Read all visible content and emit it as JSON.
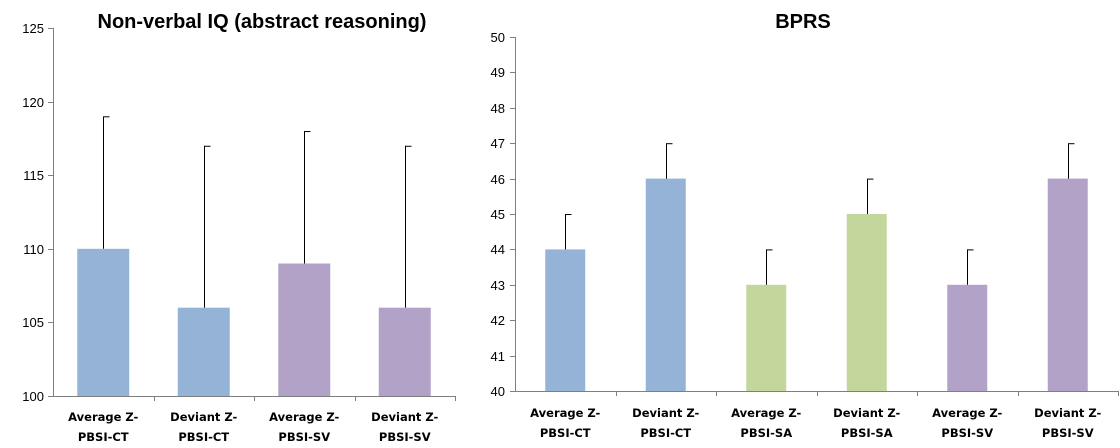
{
  "chart_data": [
    {
      "type": "bar",
      "title": "Non-verbal IQ (abstract reasoning)",
      "xlabel": "",
      "ylabel": "",
      "ylim": [
        100,
        125
      ],
      "yticks": [
        100,
        105,
        110,
        115,
        120,
        125
      ],
      "categories": [
        [
          "Average Z-",
          "PBSI-CT"
        ],
        [
          "Deviant Z-",
          "PBSI-CT"
        ],
        [
          "Average Z-",
          "PBSI-SV"
        ],
        [
          "Deviant Z-",
          "PBSI-SV"
        ]
      ],
      "values": [
        110,
        106,
        109,
        106
      ],
      "error_upper": [
        9,
        11,
        9,
        11
      ],
      "colors": [
        "#95b3d7",
        "#95b3d7",
        "#b3a2c7",
        "#b3a2c7"
      ],
      "grid": false,
      "legend": "none"
    },
    {
      "type": "bar",
      "title": "BPRS",
      "xlabel": "",
      "ylabel": "",
      "ylim": [
        40,
        50
      ],
      "yticks": [
        40,
        41,
        42,
        43,
        44,
        45,
        46,
        47,
        48,
        49,
        50
      ],
      "categories": [
        [
          "Average Z-",
          "PBSI-CT"
        ],
        [
          "Deviant Z-",
          "PBSI-CT"
        ],
        [
          "Average Z-",
          "PBSI-SA"
        ],
        [
          "Deviant Z-",
          "PBSI-SA"
        ],
        [
          "Average Z-",
          "PBSI-SV"
        ],
        [
          "Deviant Z-",
          "PBSI-SV"
        ]
      ],
      "values": [
        44,
        46,
        43,
        45,
        43,
        46
      ],
      "error_upper": [
        1,
        1,
        1,
        1,
        1,
        1
      ],
      "colors": [
        "#95b3d7",
        "#95b3d7",
        "#c3d69b",
        "#c3d69b",
        "#b3a2c7",
        "#b3a2c7"
      ],
      "grid": false,
      "legend": "none"
    }
  ]
}
